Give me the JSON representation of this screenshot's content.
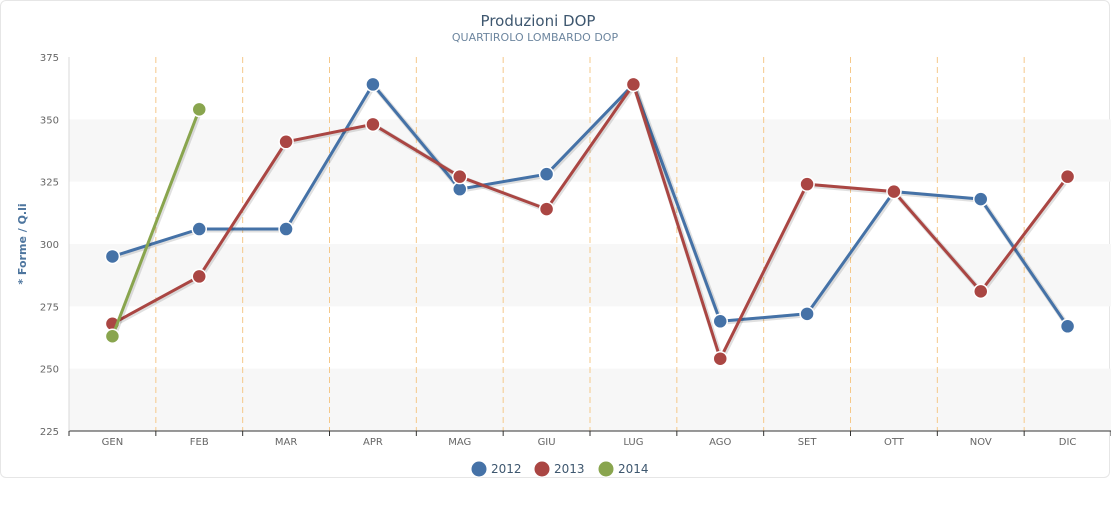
{
  "chart_data": {
    "type": "line",
    "title": "Produzioni DOP",
    "subtitle": "QUARTIROLO LOMBARDO DOP",
    "xlabel": "",
    "ylabel": "* Forme / Q.li",
    "categories": [
      "GEN",
      "FEB",
      "MAR",
      "APR",
      "MAG",
      "GIU",
      "LUG",
      "AGO",
      "SET",
      "OTT",
      "NOV",
      "DIC"
    ],
    "ylim": [
      225,
      375
    ],
    "yticks": [
      225,
      250,
      275,
      300,
      325,
      350,
      375
    ],
    "grid": "alternating horizontal bands with dashed vertical separators",
    "legend_position": "bottom-center",
    "series": [
      {
        "name": "2012",
        "color": "#4572a7",
        "values": [
          295,
          306,
          306,
          364,
          322,
          328,
          364,
          269,
          272,
          321,
          318,
          267
        ]
      },
      {
        "name": "2013",
        "color": "#aa4643",
        "values": [
          268,
          287,
          341,
          348,
          327,
          314,
          364,
          254,
          324,
          321,
          281,
          327
        ]
      },
      {
        "name": "2014",
        "color": "#89a54e",
        "values": [
          263,
          354,
          null,
          null,
          null,
          null,
          null,
          null,
          null,
          null,
          null,
          null
        ]
      }
    ]
  }
}
